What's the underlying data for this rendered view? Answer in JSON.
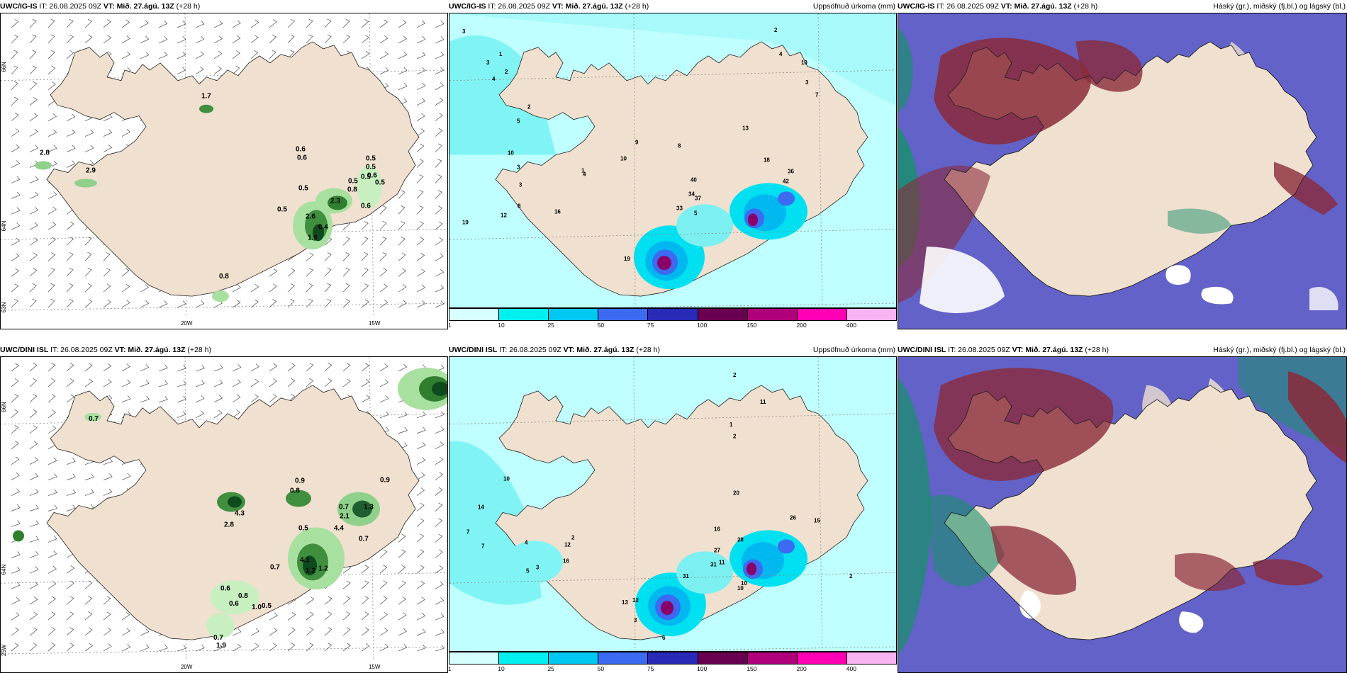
{
  "panels": [
    {
      "id": "p1",
      "header_model": "UWC/IG-IS",
      "header_it": "IT: 26.08.2025 09Z",
      "header_vt_label": "VT:",
      "header_vt": "Mið. 27.ágú. 13Z",
      "header_lead": "(+28",
      "header_lead2": "h)",
      "header_right": ""
    },
    {
      "id": "p2",
      "header_model": "UWC/IG-IS",
      "header_it": "IT: 26.08.2025 09Z",
      "header_vt_label": "VT:",
      "header_vt": "Mið. 27.ágú. 13Z",
      "header_lead": "(+28 h)",
      "header_right": "Uppsöfnuð úrkoma (mm)"
    },
    {
      "id": "p3",
      "header_model": "UWC/IG-IS",
      "header_it": "IT: 26.08.2025 09Z",
      "header_vt_label": "VT:",
      "header_vt": "Mið. 27.ágú. 13Z",
      "header_lead": "(+28 h)",
      "header_right": "Háský (gr.), miðský (fj.bl.) og lágský (bl.)"
    },
    {
      "id": "p4",
      "header_model": "UWC/DINI ISL",
      "header_it": "IT: 26.08.2025 09Z",
      "header_vt_label": "VT:",
      "header_vt": "Mið. 27.ágú. 13Z",
      "header_lead": "(+28 h)",
      "header_right": ""
    },
    {
      "id": "p5",
      "header_model": "UWC/DINI ISL",
      "header_it": "IT: 26.08.2025 09Z",
      "header_vt_label": "VT:",
      "header_vt": "Mið. 27.ágú. 13Z",
      "header_lead": "(+28 h)",
      "header_right": "Uppsöfnuð úrkoma (mm)"
    },
    {
      "id": "p6",
      "header_model": "UWC/DINI ISL",
      "header_it": "IT: 26.08.2025 09Z",
      "header_vt_label": "VT:",
      "header_vt": "Mið. 27.ágú. 13Z",
      "header_lead": "(+28 h)",
      "header_right": "Háský (gr.), miðský (fj.bl.) og lágský (bl.)"
    }
  ],
  "axis_labels": {
    "lat66": "66N",
    "lat64": "64N",
    "lat63": "63N",
    "lon25": "25W",
    "lon20": "20W",
    "lon15": "15W"
  },
  "colorbar": {
    "ticks": [
      "1",
      "10",
      "25",
      "50",
      "75",
      "100",
      "150",
      "200",
      "400"
    ],
    "colors": [
      "#d8ffff",
      "#00f0f0",
      "#00c8f0",
      "#3c6af0",
      "#2a2ab8",
      "#6a0050",
      "#b0007a",
      "#ff00b4",
      "#f8b4f0"
    ]
  },
  "wind_top_values": [
    "1.7",
    "0.6",
    "0.6",
    "0.5",
    "0.5",
    "0.6",
    "0.5",
    "0.5",
    "0.5",
    "0.8",
    "2.8",
    "2.9",
    "0.5",
    "2.3",
    "0.6",
    "2.6",
    "0.4",
    "0.5",
    "1.9",
    "0.8"
  ],
  "wind_bottom_values": [
    "0.7",
    "0.9",
    "0.8",
    "0.9",
    "0.7",
    "1.3",
    "2.1",
    "4.4",
    "0.5",
    "4.1",
    "1.2",
    "1.2",
    "0.7",
    "0.6",
    "0.8",
    "0.6",
    "1.0",
    "0.5",
    "0.7",
    "0.7",
    "1.9",
    "2.8",
    "4.3"
  ],
  "precip_top_values": [
    "3",
    "1",
    "3",
    "2",
    "4",
    "2",
    "5",
    "10",
    "3",
    "19",
    "12",
    "8",
    "3",
    "16",
    "4",
    "1",
    "10",
    "9",
    "8",
    "13",
    "18",
    "42",
    "36",
    "40",
    "33",
    "37",
    "34",
    "5",
    "19",
    "2",
    "4",
    "10",
    "7",
    "3"
  ],
  "precip_bottom_values": [
    "2",
    "10",
    "11",
    "1",
    "2",
    "14",
    "7",
    "7",
    "4",
    "5",
    "3",
    "16",
    "12",
    "2",
    "20",
    "16",
    "28",
    "27",
    "31",
    "31",
    "11",
    "10",
    "13",
    "12",
    "3",
    "6",
    "10",
    "2",
    "26",
    "15"
  ],
  "colors": {
    "land": "#f0e0cf",
    "coast": "#202020",
    "grid": "#8a8a8a",
    "barb": "#4a4a4a",
    "sea_cloud": "#6262c8",
    "high_cloud": "#8b2a3a",
    "mid_cloud": "#1b8f6e"
  }
}
